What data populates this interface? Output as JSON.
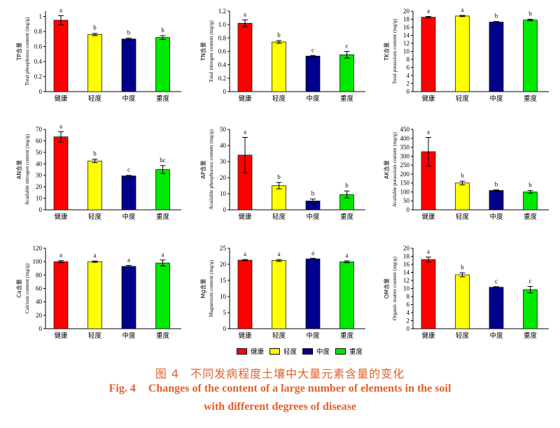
{
  "legend_placement": "bottom-center",
  "legend": [
    {
      "label": "健康",
      "color": "#ff0000"
    },
    {
      "label": "轻度",
      "color": "#ffff00"
    },
    {
      "label": "中度",
      "color": "#00008b"
    },
    {
      "label": "重度",
      "color": "#00e800"
    }
  ],
  "caption": {
    "color": "#e2602c",
    "cn_number": "图 4",
    "cn_title": "不同发病程度土壤中大量元素含量的变化",
    "en_number": "Fig. 4",
    "en_title_line1": "Changes of the content of a large number of elements in the soil",
    "en_title_line2": "with different degrees of disease"
  },
  "chart_data": [
    {
      "type": "bar",
      "grid": false,
      "ylabel_cn": "TP含量",
      "ylabel": "Total phosphorus content (mg/g)",
      "categories": [
        "健康",
        "轻度",
        "中度",
        "重度"
      ],
      "values": [
        0.95,
        0.76,
        0.7,
        0.72
      ],
      "errors": [
        0.06,
        0.015,
        0.01,
        0.025
      ],
      "significance": [
        "a",
        "b",
        "b",
        "b"
      ],
      "ylim": [
        0,
        1.07
      ],
      "yticks": [
        "0",
        "0.2",
        "0.4",
        "0.6",
        "0.8",
        "1"
      ]
    },
    {
      "type": "bar",
      "grid": false,
      "ylabel_cn": "TN含量",
      "ylabel": "Total nitrogen content (mg/g)",
      "categories": [
        "健康",
        "轻度",
        "中度",
        "重度"
      ],
      "values": [
        1.02,
        0.74,
        0.53,
        0.55
      ],
      "errors": [
        0.05,
        0.02,
        0.01,
        0.05
      ],
      "significance": [
        "a",
        "b",
        "c",
        "c"
      ],
      "ylim": [
        0,
        1.2
      ],
      "yticks": [
        "0",
        "0.2",
        "0.4",
        "0.6",
        "0.8",
        "1.0",
        "1.2"
      ]
    },
    {
      "type": "bar",
      "grid": false,
      "ylabel_cn": "TK含量",
      "ylabel": "Total potassium content (mg/g)",
      "categories": [
        "健康",
        "轻度",
        "中度",
        "重度"
      ],
      "values": [
        18.5,
        18.8,
        17.3,
        17.8
      ],
      "errors": [
        0.2,
        0.15,
        0.15,
        0.2
      ],
      "significance": [
        "a",
        "a",
        "b",
        "b"
      ],
      "ylim": [
        0,
        20
      ],
      "yticks": [
        "0",
        "2",
        "4",
        "6",
        "8",
        "10",
        "12",
        "14",
        "16",
        "18",
        "20"
      ]
    },
    {
      "type": "bar",
      "grid": false,
      "ylabel_cn": "AN含量",
      "ylabel": "Available nitrogen content (mg/g)",
      "categories": [
        "健康",
        "轻度",
        "中度",
        "重度"
      ],
      "values": [
        63.5,
        42.5,
        29.5,
        35
      ],
      "errors": [
        4.5,
        1.5,
        0.5,
        3.5
      ],
      "significance": [
        "a",
        "b",
        "c",
        "bc"
      ],
      "ylim": [
        0,
        70
      ],
      "yticks": [
        "0",
        "10",
        "20",
        "30",
        "40",
        "50",
        "60",
        "70"
      ]
    },
    {
      "type": "bar",
      "grid": false,
      "ylabel_cn": "AP含量",
      "ylabel": "Available phosphorous content (mg/g)",
      "categories": [
        "健康",
        "轻度",
        "中度",
        "重度"
      ],
      "values": [
        34,
        15,
        5.5,
        9.5
      ],
      "errors": [
        11,
        2,
        1.2,
        2.2
      ],
      "significance": [
        "a",
        "b",
        "b",
        "b"
      ],
      "ylim": [
        0,
        50
      ],
      "yticks": [
        "0",
        "10",
        "20",
        "30",
        "40",
        "50"
      ]
    },
    {
      "type": "bar",
      "grid": false,
      "ylabel_cn": "AK含量",
      "ylabel": "Available potassium content (mg/g)",
      "categories": [
        "健康",
        "轻度",
        "中度",
        "重度"
      ],
      "values": [
        325,
        150,
        108,
        100
      ],
      "errors": [
        80,
        10,
        4,
        8
      ],
      "significance": [
        "a",
        "b",
        "b",
        "b"
      ],
      "ylim": [
        0,
        450
      ],
      "yticks": [
        "0",
        "50",
        "100",
        "150",
        "200",
        "250",
        "300",
        "350",
        "400",
        "450"
      ]
    },
    {
      "type": "bar",
      "grid": false,
      "ylabel_cn": "Ca含量",
      "ylabel": "Calcium content (mg/g)",
      "categories": [
        "健康",
        "轻度",
        "中度",
        "重度"
      ],
      "values": [
        100,
        100,
        93,
        98
      ],
      "errors": [
        1.5,
        1,
        1.5,
        4.5
      ],
      "significance": [
        "a",
        "a",
        "a",
        "a"
      ],
      "ylim": [
        0,
        120
      ],
      "yticks": [
        "0",
        "20",
        "40",
        "60",
        "80",
        "100",
        "120"
      ]
    },
    {
      "type": "bar",
      "grid": false,
      "ylabel_cn": "Mg含量",
      "ylabel": "Magnesium content (mg/g)",
      "categories": [
        "健康",
        "轻度",
        "中度",
        "重度"
      ],
      "values": [
        21.3,
        21.2,
        21.7,
        20.8
      ],
      "errors": [
        0.2,
        0.3,
        0.2,
        0.3
      ],
      "significance": [
        "a",
        "a",
        "a",
        "a"
      ],
      "ylim": [
        0,
        25
      ],
      "yticks": [
        "0",
        "5",
        "10",
        "15",
        "20",
        "25"
      ]
    },
    {
      "type": "bar",
      "grid": false,
      "ylabel_cn": "OM含量",
      "ylabel": "Organic matter content (mg/g)",
      "categories": [
        "健康",
        "轻度",
        "中度",
        "重度"
      ],
      "values": [
        17.2,
        13.4,
        10.3,
        9.7
      ],
      "errors": [
        0.6,
        0.5,
        0.15,
        0.8
      ],
      "significance": [
        "a",
        "b",
        "c",
        "c"
      ],
      "ylim": [
        0,
        20
      ],
      "yticks": [
        "0",
        "2",
        "4",
        "6",
        "8",
        "10",
        "12",
        "14",
        "16",
        "18",
        "20"
      ]
    }
  ]
}
